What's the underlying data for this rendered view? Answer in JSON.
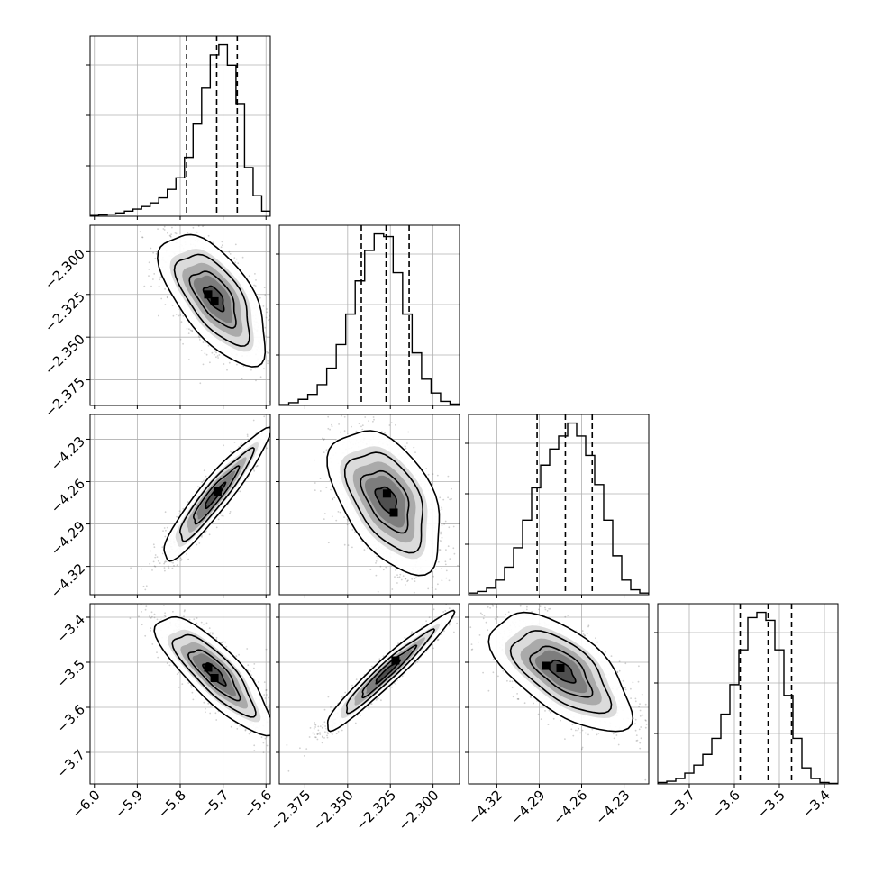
{
  "chart_data": {
    "type": "corner",
    "parameters": [
      {
        "ticks": [
          -6.0,
          -5.9,
          -5.8,
          -5.7,
          -5.6
        ],
        "tick_labels": [
          "−6.0",
          "−5.9",
          "−5.8",
          "−5.7",
          "−5.6"
        ],
        "range": [
          -6.01,
          -5.59
        ],
        "quantiles": [
          -5.785,
          -5.715,
          -5.667
        ],
        "hist": [
          0.3,
          0.5,
          0.8,
          1.3,
          2.0,
          2.8,
          3.8,
          5.2,
          7.2,
          10.5,
          15.0,
          23.0,
          36.0,
          50.0,
          63.0,
          67.0,
          59.0,
          44.0,
          19.0,
          8.0,
          2.0
        ]
      },
      {
        "ticks": [
          -2.375,
          -2.35,
          -2.325,
          -2.3
        ],
        "tick_labels": [
          "−2.375",
          "−2.350",
          "−2.325",
          "−2.300"
        ],
        "range": [
          -2.39,
          -2.2845
        ],
        "quantiles": [
          -2.342,
          -2.3275,
          -2.314
        ],
        "hist": [
          0.3,
          1.0,
          2.2,
          4.0,
          7.5,
          13.5,
          22.0,
          33.0,
          45.0,
          56.0,
          62.0,
          61.0,
          48.0,
          33.0,
          19.0,
          9.5,
          4.5,
          1.5,
          0.5
        ]
      },
      {
        "ticks": [
          -4.32,
          -4.29,
          -4.26,
          -4.23
        ],
        "tick_labels": [
          "−4.32",
          "−4.29",
          "−4.26",
          "−4.23"
        ],
        "range": [
          -4.34,
          -4.2125
        ],
        "quantiles": [
          -4.2915,
          -4.2715,
          -4.2525
        ],
        "hist": [
          0.5,
          1.0,
          2.0,
          4.5,
          8.5,
          14.5,
          23.0,
          33.0,
          40.0,
          45.0,
          49.0,
          53.0,
          49.0,
          43.0,
          34.0,
          23.0,
          12.0,
          4.5,
          1.5,
          0.5
        ]
      },
      {
        "ticks": [
          -3.7,
          -3.6,
          -3.5,
          -3.4
        ],
        "tick_labels": [
          "−3.7",
          "−3.6",
          "−3.5",
          "−3.4"
        ],
        "range": [
          -3.77,
          -3.37
        ],
        "quantiles": [
          -3.587,
          -3.525,
          -3.473
        ],
        "hist": [
          0.5,
          1.0,
          2.0,
          4.0,
          7.0,
          11.0,
          17.0,
          26.0,
          37.0,
          50.0,
          62.0,
          64.0,
          61.0,
          50.0,
          33.0,
          17.0,
          6.0,
          2.0,
          0.5,
          0.2
        ]
      }
    ],
    "pairs": [
      {
        "x": 0,
        "y": 1,
        "mean": [
          -5.72,
          -2.327
        ],
        "sd": [
          0.055,
          0.017
        ],
        "rho": -0.62,
        "peaks": [
          [
            -5.735,
            -2.325
          ],
          [
            -5.72,
            -2.329
          ]
        ]
      },
      {
        "x": 0,
        "y": 2,
        "mean": [
          -5.72,
          -4.27
        ],
        "sd": [
          0.055,
          0.0205
        ],
        "rho": 0.93,
        "peaks": [
          [
            -5.713,
            -4.267
          ]
        ]
      },
      {
        "x": 1,
        "y": 2,
        "mean": [
          -2.327,
          -4.273
        ],
        "sd": [
          0.0145,
          0.0225
        ],
        "rho": -0.48,
        "peaks": [
          [
            -2.327,
            -4.2685
          ],
          [
            -2.323,
            -4.282
          ]
        ]
      },
      {
        "x": 0,
        "y": 3,
        "mean": [
          -5.72,
          -3.525
        ],
        "sd": [
          0.06,
          0.058
        ],
        "rho": -0.82,
        "peaks": [
          [
            -5.735,
            -3.512
          ],
          [
            -5.72,
            -3.535
          ]
        ]
      },
      {
        "x": 1,
        "y": 3,
        "mean": [
          -2.327,
          -3.522
        ],
        "sd": [
          0.0165,
          0.058
        ],
        "rho": 0.96,
        "peaks": [
          [
            -2.322,
            -3.496
          ]
        ]
      },
      {
        "x": 2,
        "y": 3,
        "mean": [
          -4.274,
          -3.52
        ],
        "sd": [
          0.022,
          0.058
        ],
        "rho": -0.62,
        "peaks": [
          [
            -4.285,
            -3.508
          ],
          [
            -4.275,
            -3.513
          ]
        ]
      }
    ],
    "grid": true,
    "xlabel": "",
    "ylabel": ""
  }
}
